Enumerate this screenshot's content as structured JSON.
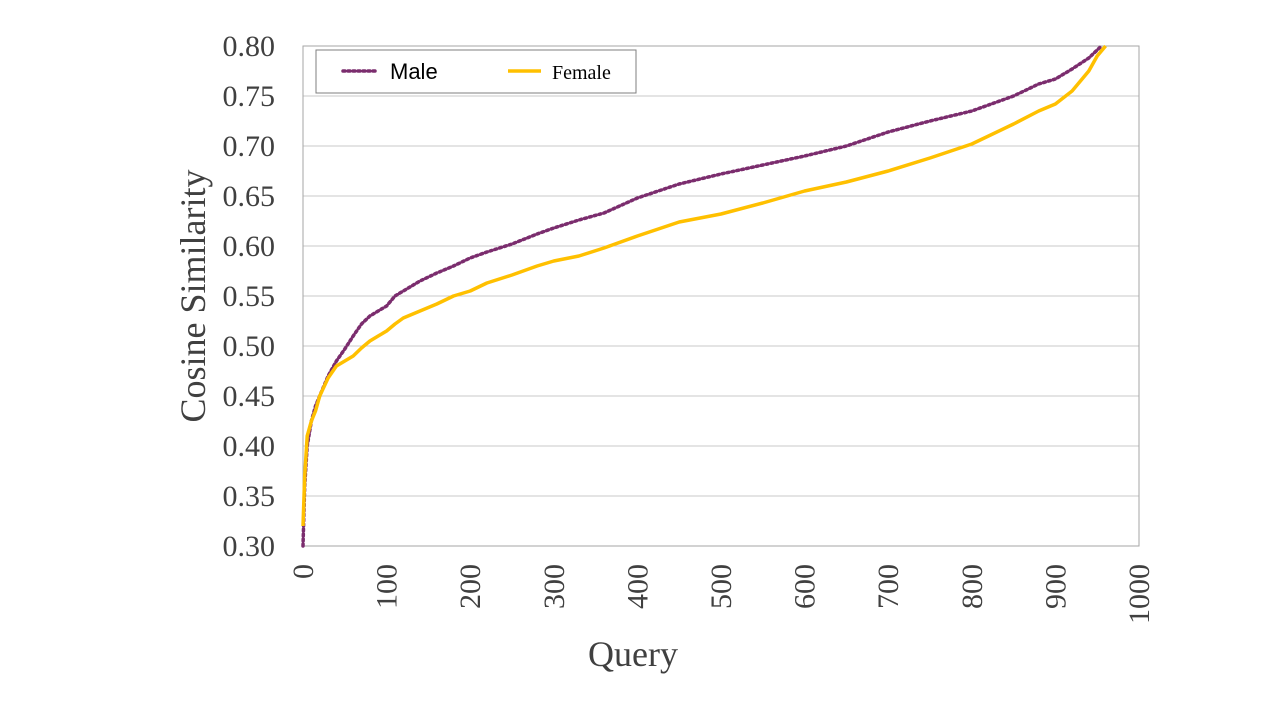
{
  "chart_data": {
    "type": "line",
    "xlabel": "Query",
    "ylabel": "Cosine Similarity",
    "xlim": [
      0,
      1000
    ],
    "ylim": [
      0.3,
      0.8
    ],
    "x_ticks": [
      "0",
      "100",
      "200",
      "300",
      "400",
      "500",
      "600",
      "700",
      "800",
      "900",
      "1000"
    ],
    "y_ticks": [
      "0.80",
      "0.75",
      "0.70",
      "0.65",
      "0.60",
      "0.55",
      "0.50",
      "0.45",
      "0.40",
      "0.35",
      "0.30"
    ],
    "grid": "horizontal",
    "legend_position": "top-left",
    "series": [
      {
        "name": "Male",
        "color": "#7B2D6E",
        "style": "dotted",
        "x": [
          0,
          2,
          5,
          10,
          15,
          20,
          30,
          40,
          50,
          60,
          70,
          80,
          90,
          100,
          110,
          120,
          140,
          160,
          180,
          200,
          220,
          250,
          280,
          300,
          330,
          360,
          400,
          450,
          500,
          550,
          600,
          650,
          700,
          750,
          800,
          850,
          880,
          900,
          920,
          940,
          955
        ],
        "values": [
          0.3,
          0.36,
          0.4,
          0.425,
          0.44,
          0.45,
          0.47,
          0.485,
          0.497,
          0.51,
          0.522,
          0.53,
          0.535,
          0.54,
          0.55,
          0.555,
          0.565,
          0.573,
          0.58,
          0.588,
          0.594,
          0.602,
          0.612,
          0.618,
          0.626,
          0.633,
          0.648,
          0.662,
          0.672,
          0.681,
          0.69,
          0.7,
          0.714,
          0.725,
          0.735,
          0.75,
          0.762,
          0.767,
          0.777,
          0.788,
          0.8
        ]
      },
      {
        "name": "Female",
        "color": "#FFC000",
        "style": "solid",
        "x": [
          0,
          2,
          5,
          10,
          15,
          20,
          30,
          40,
          50,
          60,
          70,
          80,
          90,
          100,
          110,
          120,
          140,
          160,
          180,
          200,
          220,
          250,
          280,
          300,
          330,
          360,
          400,
          450,
          500,
          550,
          600,
          650,
          700,
          750,
          800,
          850,
          880,
          900,
          920,
          940,
          950,
          960
        ],
        "values": [
          0.32,
          0.37,
          0.41,
          0.425,
          0.435,
          0.45,
          0.468,
          0.48,
          0.485,
          0.49,
          0.498,
          0.505,
          0.51,
          0.515,
          0.522,
          0.528,
          0.535,
          0.542,
          0.55,
          0.555,
          0.563,
          0.571,
          0.58,
          0.585,
          0.59,
          0.598,
          0.61,
          0.624,
          0.632,
          0.643,
          0.655,
          0.664,
          0.675,
          0.688,
          0.702,
          0.722,
          0.735,
          0.742,
          0.755,
          0.775,
          0.79,
          0.8
        ]
      }
    ]
  }
}
